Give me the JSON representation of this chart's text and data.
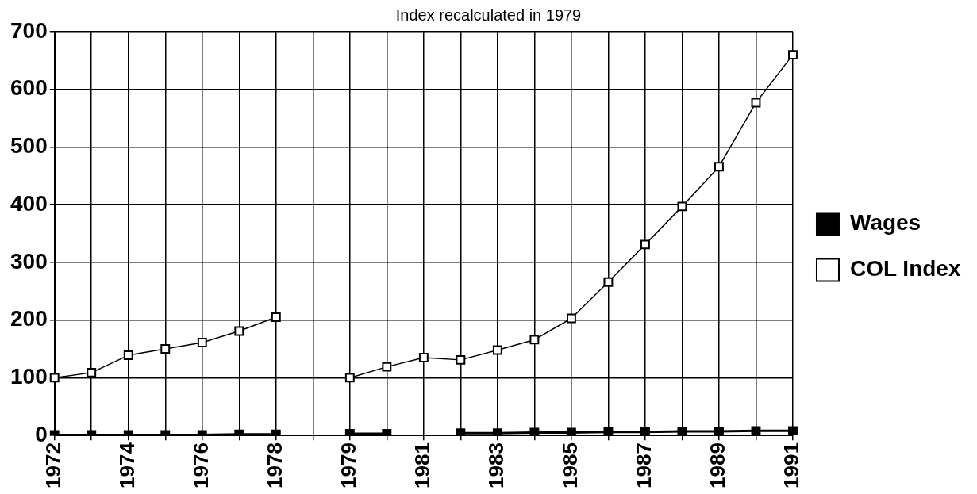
{
  "chart_data": {
    "type": "line",
    "title": "Index recalculated in 1979",
    "categories": [
      "1972",
      null,
      "1974",
      null,
      "1976",
      null,
      "1978",
      null,
      "1979",
      null,
      "1981",
      null,
      "1983",
      null,
      "1985",
      null,
      "1987",
      null,
      "1989",
      null,
      "1991"
    ],
    "series": [
      {
        "name": "Wages",
        "color": "#000000",
        "values": [
          1,
          1,
          1,
          1,
          1,
          2,
          2,
          null,
          3,
          3,
          null,
          4,
          4,
          5,
          5,
          6,
          6,
          7,
          7,
          8,
          8
        ]
      },
      {
        "name": "COL Index",
        "color": "#000000",
        "values": [
          100,
          109,
          139,
          150,
          161,
          181,
          205,
          null,
          100,
          119,
          135,
          131,
          148,
          166,
          203,
          266,
          331,
          397,
          466,
          577,
          660
        ]
      }
    ],
    "ylim": [
      0,
      700
    ],
    "yticks": [
      0,
      100,
      200,
      300,
      400,
      500,
      600,
      700
    ],
    "grid": true,
    "legend": "right",
    "marker": "square",
    "line_style": "solid"
  }
}
